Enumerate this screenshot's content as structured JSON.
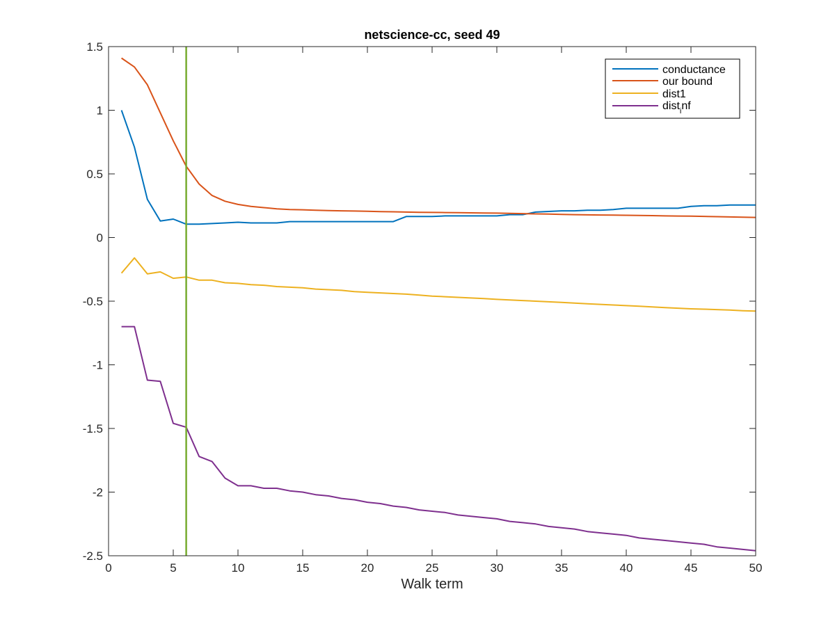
{
  "chart_data": {
    "type": "line",
    "title": "netscience-cc, seed 49",
    "xlabel": "Walk term",
    "ylabel": "",
    "xlim": [
      0,
      50
    ],
    "ylim": [
      -2.5,
      1.5
    ],
    "xticks": [
      0,
      5,
      10,
      15,
      20,
      25,
      30,
      35,
      40,
      45,
      50
    ],
    "yticks": [
      -2.5,
      -2,
      -1.5,
      -1,
      -0.5,
      0,
      0.5,
      1,
      1.5
    ],
    "xtick_labels": [
      "0",
      "5",
      "10",
      "15",
      "20",
      "25",
      "30",
      "35",
      "40",
      "45",
      "50"
    ],
    "ytick_labels": [
      "-2.5",
      "-2",
      "-1.5",
      "-1",
      "-0.5",
      "0",
      "0.5",
      "1",
      "1.5"
    ],
    "grid": false,
    "legend_placement": "top-right",
    "x": [
      1,
      2,
      3,
      4,
      5,
      6,
      7,
      8,
      9,
      10,
      11,
      12,
      13,
      14,
      15,
      16,
      17,
      18,
      19,
      20,
      21,
      22,
      23,
      24,
      25,
      26,
      27,
      28,
      29,
      30,
      31,
      32,
      33,
      34,
      35,
      36,
      37,
      38,
      39,
      40,
      41,
      42,
      43,
      44,
      45,
      46,
      47,
      48,
      49,
      50
    ],
    "series": [
      {
        "name": "conductance",
        "color": "#0072BD",
        "values": [
          1.0,
          0.71,
          0.3,
          0.13,
          0.145,
          0.105,
          0.105,
          0.11,
          0.115,
          0.12,
          0.115,
          0.115,
          0.115,
          0.125,
          0.125,
          0.125,
          0.125,
          0.125,
          0.125,
          0.125,
          0.125,
          0.125,
          0.165,
          0.165,
          0.165,
          0.17,
          0.17,
          0.17,
          0.17,
          0.17,
          0.18,
          0.18,
          0.2,
          0.205,
          0.21,
          0.21,
          0.215,
          0.215,
          0.22,
          0.23,
          0.23,
          0.23,
          0.23,
          0.23,
          0.245,
          0.25,
          0.25,
          0.255,
          0.255,
          0.255
        ]
      },
      {
        "name": "our bound",
        "color": "#D95319",
        "values": [
          1.41,
          1.34,
          1.2,
          0.98,
          0.76,
          0.56,
          0.42,
          0.33,
          0.285,
          0.26,
          0.245,
          0.235,
          0.225,
          0.22,
          0.218,
          0.215,
          0.212,
          0.21,
          0.208,
          0.206,
          0.204,
          0.202,
          0.2,
          0.198,
          0.197,
          0.196,
          0.195,
          0.194,
          0.193,
          0.192,
          0.19,
          0.188,
          0.186,
          0.184,
          0.182,
          0.18,
          0.178,
          0.177,
          0.176,
          0.175,
          0.174,
          0.172,
          0.17,
          0.169,
          0.168,
          0.166,
          0.164,
          0.162,
          0.16,
          0.158
        ]
      },
      {
        "name": "dist1",
        "color": "#EDB120",
        "values": [
          -0.28,
          -0.16,
          -0.285,
          -0.27,
          -0.32,
          -0.31,
          -0.335,
          -0.335,
          -0.355,
          -0.36,
          -0.37,
          -0.375,
          -0.385,
          -0.39,
          -0.395,
          -0.405,
          -0.41,
          -0.415,
          -0.425,
          -0.43,
          -0.435,
          -0.44,
          -0.445,
          -0.452,
          -0.46,
          -0.465,
          -0.47,
          -0.475,
          -0.48,
          -0.486,
          -0.49,
          -0.495,
          -0.5,
          -0.505,
          -0.51,
          -0.515,
          -0.52,
          -0.525,
          -0.53,
          -0.535,
          -0.54,
          -0.545,
          -0.55,
          -0.555,
          -0.56,
          -0.563,
          -0.566,
          -0.57,
          -0.575,
          -0.578
        ]
      },
      {
        "name": "dist_inf",
        "label_main": "dist",
        "label_sub": "i",
        "label_tail": "nf",
        "color": "#7E2F8E",
        "values": [
          -0.7,
          -0.7,
          -1.12,
          -1.13,
          -1.46,
          -1.49,
          -1.72,
          -1.76,
          -1.89,
          -1.95,
          -1.95,
          -1.97,
          -1.97,
          -1.99,
          -2.0,
          -2.02,
          -2.03,
          -2.05,
          -2.06,
          -2.08,
          -2.09,
          -2.11,
          -2.12,
          -2.14,
          -2.15,
          -2.16,
          -2.18,
          -2.19,
          -2.2,
          -2.21,
          -2.23,
          -2.24,
          -2.25,
          -2.27,
          -2.28,
          -2.29,
          -2.31,
          -2.32,
          -2.33,
          -2.34,
          -2.36,
          -2.37,
          -2.38,
          -2.39,
          -2.4,
          -2.41,
          -2.43,
          -2.44,
          -2.45,
          -2.46
        ]
      }
    ],
    "vertical_line": {
      "x": 6,
      "color": "#77AC30"
    }
  }
}
